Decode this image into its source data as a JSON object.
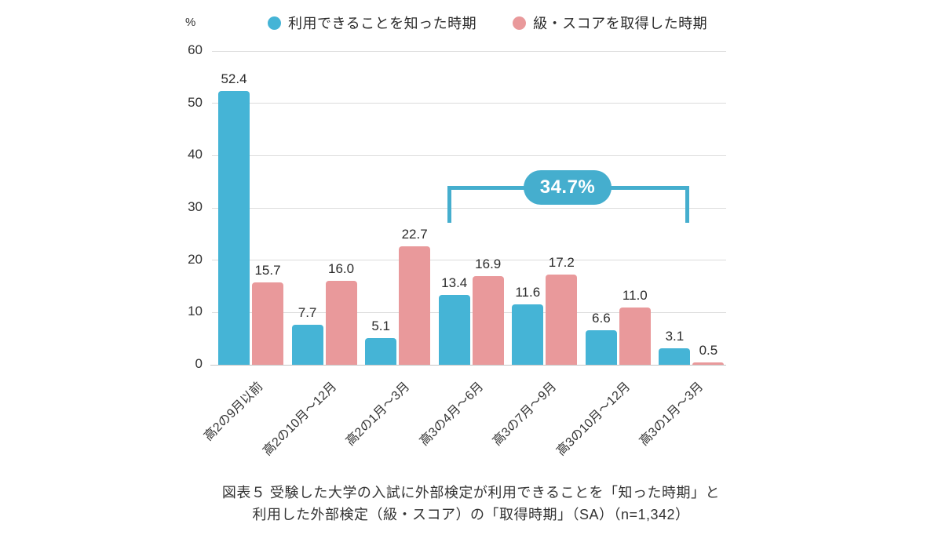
{
  "chart_data": {
    "type": "bar",
    "title": "",
    "ylabel": "%",
    "ylim": [
      0,
      60
    ],
    "yticks": [
      0,
      10,
      20,
      30,
      40,
      50,
      60
    ],
    "grid": true,
    "legend_position": "top",
    "categories": [
      "高2の9月以前",
      "高2の10月〜12月",
      "高2の1月〜3月",
      "高3の4月〜6月",
      "高3の7月〜9月",
      "高3の10月〜12月",
      "高3の1月〜3月"
    ],
    "series": [
      {
        "name": "利用できることを知った時期",
        "color": "#45B4D6",
        "values": [
          52.4,
          7.7,
          5.1,
          13.4,
          11.6,
          6.6,
          3.1
        ]
      },
      {
        "name": "級・スコアを取得した時期",
        "color": "#E9999B",
        "values": [
          15.7,
          16.0,
          22.7,
          16.9,
          17.2,
          11.0,
          0.5
        ]
      }
    ],
    "annotation": {
      "label": "34.7%",
      "series": "利用できることを知った時期",
      "from_category": "高3の4月〜6月",
      "to_category": "高3の1月〜3月",
      "color": "#45AECE"
    }
  },
  "caption": {
    "line1": "図表５ 受験した大学の入試に外部検定が利用できることを「知った時期」と",
    "line2": "利用した外部検定（級・スコア）の「取得時期」（SA）（n=1,342）"
  }
}
